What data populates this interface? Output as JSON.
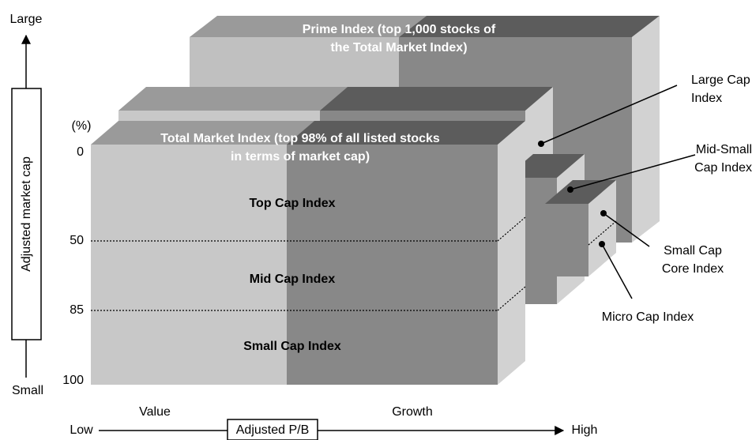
{
  "axis_left": {
    "top": "Large",
    "bottom": "Small",
    "label": "Adjusted market cap"
  },
  "scale": {
    "unit": "(%)",
    "ticks": [
      0,
      50,
      85,
      100
    ]
  },
  "prime_index": {
    "lines": [
      "Prime Index (top 1,000 stocks of",
      "the Total Market Index)"
    ]
  },
  "total_market_index": {
    "lines": [
      "Total Market Index (top 98% of all listed stocks",
      "in terms of market cap)"
    ]
  },
  "segments": [
    "Top Cap Index",
    "Mid Cap Index",
    "Small Cap Index"
  ],
  "callouts": [
    {
      "lines": [
        "Large Cap",
        "Index"
      ]
    },
    {
      "lines": [
        "Mid-Small",
        "Cap Index"
      ]
    },
    {
      "lines": [
        "Small Cap",
        "Core Index"
      ]
    },
    {
      "lines": [
        "Micro Cap Index"
      ]
    }
  ],
  "axis_bottom": {
    "low": "Low",
    "value": "Value",
    "label": "Adjusted P/B",
    "growth": "Growth",
    "high": "High"
  }
}
